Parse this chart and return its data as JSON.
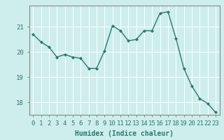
{
  "x": [
    0,
    1,
    2,
    3,
    4,
    5,
    6,
    7,
    8,
    9,
    10,
    11,
    12,
    13,
    14,
    15,
    16,
    17,
    18,
    19,
    20,
    21,
    22,
    23
  ],
  "y": [
    20.7,
    20.4,
    20.2,
    19.8,
    19.9,
    19.8,
    19.75,
    19.35,
    19.35,
    20.05,
    21.05,
    20.85,
    20.45,
    20.5,
    20.85,
    20.85,
    21.55,
    21.6,
    20.55,
    19.35,
    18.65,
    18.15,
    17.95,
    17.6
  ],
  "line_color": "#2a7a6e",
  "marker": "D",
  "markersize": 2.0,
  "linewidth": 1.0,
  "xlabel": "Humidex (Indice chaleur)",
  "ylim": [
    17.5,
    21.85
  ],
  "xlim": [
    -0.5,
    23.5
  ],
  "yticks": [
    18,
    19,
    20,
    21
  ],
  "xticks": [
    0,
    1,
    2,
    3,
    4,
    5,
    6,
    7,
    8,
    9,
    10,
    11,
    12,
    13,
    14,
    15,
    16,
    17,
    18,
    19,
    20,
    21,
    22,
    23
  ],
  "bg_color": "#cdeeed",
  "grid_color": "#ffffff",
  "tick_color": "#2a7a6e",
  "axis_color": "#888888",
  "xlabel_fontsize": 7,
  "tick_fontsize": 6.5
}
